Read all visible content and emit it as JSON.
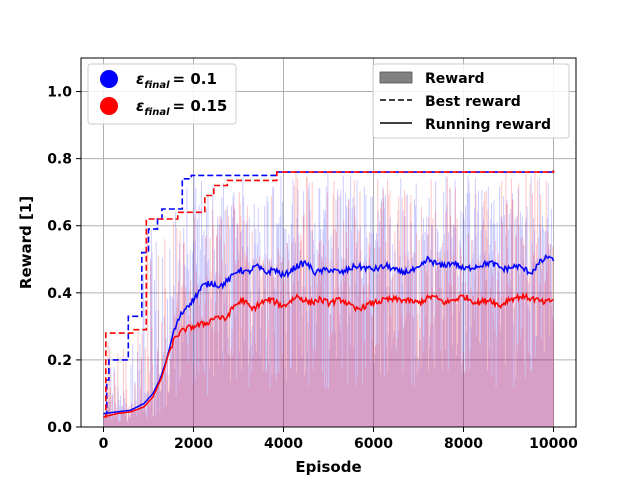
{
  "chart_data": {
    "type": "line",
    "xlabel": "Episode",
    "ylabel": "Reward [1]",
    "xlim": [
      -500,
      10500
    ],
    "ylim": [
      0.0,
      1.1
    ],
    "xticks": [
      0,
      2000,
      4000,
      6000,
      8000,
      10000
    ],
    "xtick_labels": [
      "0",
      "2000",
      "4000",
      "6000",
      "8000",
      "10000"
    ],
    "yticks": [
      0.0,
      0.2,
      0.4,
      0.6,
      0.8,
      1.0
    ],
    "ytick_labels": [
      "0.0",
      "0.2",
      "0.4",
      "0.6",
      "0.8",
      "1.0"
    ],
    "grid": true,
    "color_legend": {
      "placement": "top-left",
      "items": [
        {
          "prefix": "ε",
          "subscript": "final",
          "value": "= 0.1",
          "color": "#0000ff"
        },
        {
          "prefix": "ε",
          "subscript": "final",
          "value": "= 0.15",
          "color": "#ff0000"
        }
      ]
    },
    "style_legend": {
      "placement": "top-right",
      "items": [
        {
          "label": "Reward",
          "kind": "bar"
        },
        {
          "label": "Best reward",
          "kind": "dashed"
        },
        {
          "label": "Running reward",
          "kind": "solid"
        }
      ]
    },
    "series": [
      {
        "key": "eps_0.1",
        "color": "#0000ff",
        "best_reward": [
          [
            0,
            0.04
          ],
          [
            70,
            0.14
          ],
          [
            120,
            0.2
          ],
          [
            500,
            0.2
          ],
          [
            550,
            0.33
          ],
          [
            800,
            0.33
          ],
          [
            850,
            0.52
          ],
          [
            950,
            0.52
          ],
          [
            1000,
            0.59
          ],
          [
            1150,
            0.59
          ],
          [
            1200,
            0.62
          ],
          [
            1250,
            0.62
          ],
          [
            1300,
            0.65
          ],
          [
            1700,
            0.65
          ],
          [
            1750,
            0.74
          ],
          [
            1900,
            0.74
          ],
          [
            1950,
            0.75
          ],
          [
            3800,
            0.75
          ],
          [
            3850,
            0.76
          ],
          [
            10000,
            0.765
          ]
        ],
        "running_reward": [
          [
            0,
            0.04
          ],
          [
            300,
            0.045
          ],
          [
            600,
            0.05
          ],
          [
            900,
            0.07
          ],
          [
            1100,
            0.1
          ],
          [
            1250,
            0.14
          ],
          [
            1400,
            0.2
          ],
          [
            1550,
            0.28
          ],
          [
            1700,
            0.33
          ],
          [
            1850,
            0.36
          ],
          [
            2000,
            0.38
          ],
          [
            2200,
            0.42
          ],
          [
            2400,
            0.43
          ],
          [
            2600,
            0.42
          ],
          [
            2800,
            0.44
          ],
          [
            3000,
            0.47
          ],
          [
            3200,
            0.46
          ],
          [
            3400,
            0.48
          ],
          [
            3600,
            0.46
          ],
          [
            3800,
            0.47
          ],
          [
            4000,
            0.45
          ],
          [
            4300,
            0.48
          ],
          [
            4500,
            0.49
          ],
          [
            4700,
            0.46
          ],
          [
            5000,
            0.47
          ],
          [
            5300,
            0.46
          ],
          [
            5600,
            0.48
          ],
          [
            6000,
            0.47
          ],
          [
            6300,
            0.48
          ],
          [
            6600,
            0.46
          ],
          [
            7000,
            0.47
          ],
          [
            7200,
            0.5
          ],
          [
            7500,
            0.48
          ],
          [
            7800,
            0.49
          ],
          [
            8000,
            0.47
          ],
          [
            8300,
            0.48
          ],
          [
            8600,
            0.49
          ],
          [
            8900,
            0.47
          ],
          [
            9200,
            0.48
          ],
          [
            9500,
            0.46
          ],
          [
            9700,
            0.49
          ],
          [
            9900,
            0.51
          ],
          [
            10000,
            0.49
          ]
        ]
      },
      {
        "key": "eps_0.15",
        "color": "#ff0000",
        "best_reward": [
          [
            0,
            0.03
          ],
          [
            50,
            0.28
          ],
          [
            600,
            0.28
          ],
          [
            650,
            0.29
          ],
          [
            900,
            0.29
          ],
          [
            950,
            0.62
          ],
          [
            1600,
            0.62
          ],
          [
            1650,
            0.64
          ],
          [
            2200,
            0.64
          ],
          [
            2250,
            0.69
          ],
          [
            2400,
            0.69
          ],
          [
            2450,
            0.72
          ],
          [
            2700,
            0.72
          ],
          [
            2750,
            0.735
          ],
          [
            3800,
            0.735
          ],
          [
            3850,
            0.76
          ],
          [
            10000,
            0.765
          ]
        ],
        "running_reward": [
          [
            0,
            0.03
          ],
          [
            300,
            0.04
          ],
          [
            600,
            0.045
          ],
          [
            900,
            0.06
          ],
          [
            1100,
            0.09
          ],
          [
            1300,
            0.15
          ],
          [
            1450,
            0.22
          ],
          [
            1600,
            0.27
          ],
          [
            1800,
            0.29
          ],
          [
            2000,
            0.3
          ],
          [
            2300,
            0.31
          ],
          [
            2500,
            0.33
          ],
          [
            2700,
            0.32
          ],
          [
            2900,
            0.36
          ],
          [
            3100,
            0.38
          ],
          [
            3300,
            0.35
          ],
          [
            3500,
            0.37
          ],
          [
            3700,
            0.38
          ],
          [
            4000,
            0.36
          ],
          [
            4300,
            0.39
          ],
          [
            4600,
            0.37
          ],
          [
            4800,
            0.38
          ],
          [
            5000,
            0.37
          ],
          [
            5300,
            0.38
          ],
          [
            5600,
            0.35
          ],
          [
            6000,
            0.37
          ],
          [
            6300,
            0.38
          ],
          [
            6600,
            0.38
          ],
          [
            7000,
            0.37
          ],
          [
            7300,
            0.39
          ],
          [
            7600,
            0.37
          ],
          [
            7800,
            0.38
          ],
          [
            8000,
            0.39
          ],
          [
            8300,
            0.37
          ],
          [
            8600,
            0.38
          ],
          [
            8800,
            0.36
          ],
          [
            9000,
            0.38
          ],
          [
            9300,
            0.39
          ],
          [
            9600,
            0.38
          ],
          [
            9800,
            0.37
          ],
          [
            10000,
            0.38
          ]
        ]
      }
    ]
  }
}
